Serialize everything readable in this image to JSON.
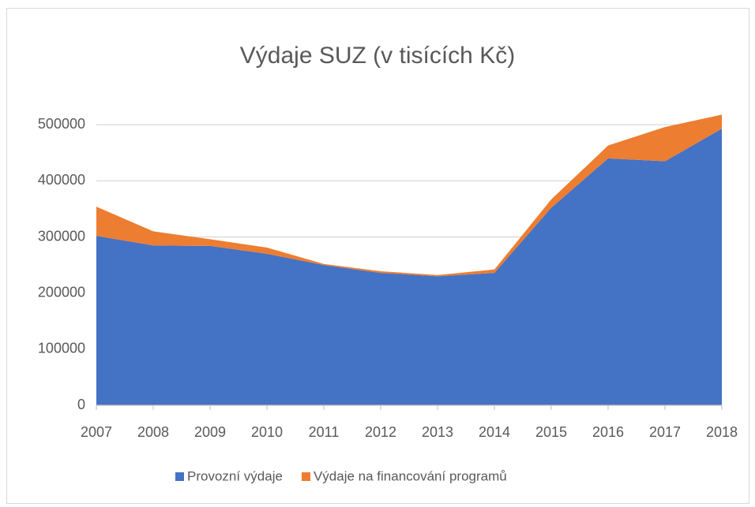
{
  "chart_data": {
    "type": "stacked_area",
    "title": "Výdaje SUZ (v tisících Kč)",
    "categories": [
      "2007",
      "2008",
      "2009",
      "2010",
      "2011",
      "2012",
      "2013",
      "2014",
      "2015",
      "2016",
      "2017",
      "2018"
    ],
    "series": [
      {
        "name": "Provozní výdaje",
        "color": "#4472c4",
        "values": [
          302000,
          285000,
          284000,
          270000,
          250000,
          236000,
          230000,
          236000,
          352000,
          440000,
          435000,
          493000
        ]
      },
      {
        "name": "Výdaje na financování programů",
        "color": "#ed7d31",
        "values": [
          52000,
          25000,
          12000,
          11000,
          2000,
          3000,
          2000,
          6000,
          15000,
          23000,
          61000,
          25000
        ]
      }
    ],
    "ylim": [
      0,
      520000
    ],
    "yticks": [
      0,
      100000,
      200000,
      300000,
      400000,
      500000
    ],
    "grid": true,
    "legend": "bottom"
  }
}
